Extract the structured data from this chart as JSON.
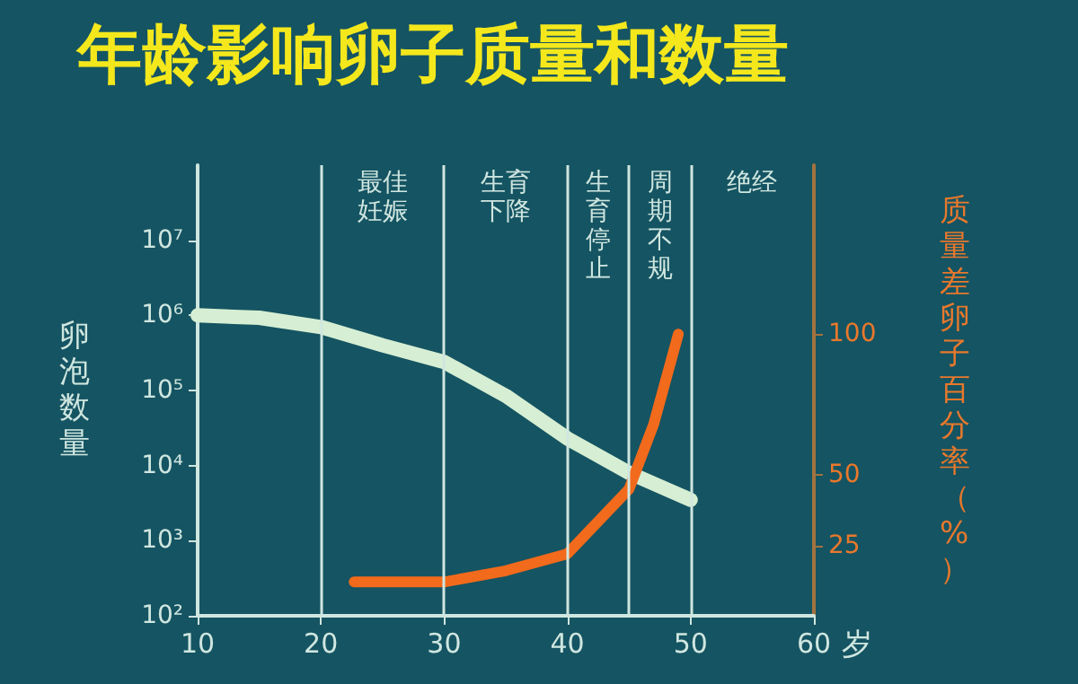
{
  "chart_data": {
    "type": "line",
    "title": "年龄影响卵子质量和数量",
    "xlabel": "岁",
    "ylabel": "卵泡数量",
    "y2label": "质量差卵子百分率（%）",
    "series": [
      {
        "color": "#d6eed3",
        "x": [
          10,
          15,
          20,
          25,
          30,
          35,
          40,
          45,
          50
        ],
        "values": [
          1000000,
          930000,
          700000,
          400000,
          240000,
          85000,
          23000,
          8000,
          3500
        ]
      },
      {
        "color": "#f26a1b",
        "axis": "y2",
        "x": [
          22.7,
          26,
          30,
          35,
          40,
          45,
          47,
          49
        ],
        "values": [
          12,
          12,
          12,
          16,
          22,
          45,
          68,
          100
        ]
      }
    ],
    "xlim": [
      10,
      60
    ],
    "xticks": [
      10,
      20,
      30,
      40,
      50,
      60
    ],
    "log": "y",
    "ylim": [
      100,
      100000000
    ],
    "yticks": [
      {
        "value": 100,
        "label": "10²"
      },
      {
        "value": 1000,
        "label": "10³"
      },
      {
        "value": 10000,
        "label": "10⁴"
      },
      {
        "value": 100000,
        "label": "10⁵"
      },
      {
        "value": 1000000,
        "label": "10⁶"
      },
      {
        "value": 10000000,
        "label": "10⁷"
      }
    ],
    "y2lim": [
      0,
      160
    ],
    "y2ticks": [
      25,
      50,
      100
    ],
    "ref_lines": [
      {
        "axis": "x",
        "value": 20,
        "label": "最佳妊娠",
        "color": "#cfe6e0"
      },
      {
        "axis": "x",
        "value": 30,
        "label": "生育下降",
        "color": "#cfe6e0"
      },
      {
        "axis": "x",
        "value": 40,
        "label": "生育停止",
        "color": "#cfe6e0"
      },
      {
        "axis": "x",
        "value": 45,
        "label": "周期不规",
        "color": "#cfe6e0"
      },
      {
        "axis": "x",
        "value": 50,
        "label": "绝经",
        "color": "#cfe6e0"
      }
    ],
    "grid": false,
    "marker": "none",
    "line_style": "solid"
  }
}
